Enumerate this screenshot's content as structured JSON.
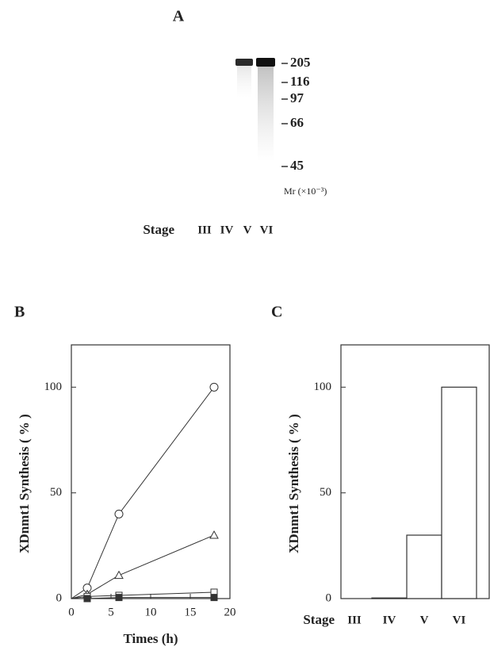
{
  "gel": {
    "label": "A",
    "markers": [
      205,
      116,
      97,
      66,
      45
    ],
    "unit": "Mr (×10⁻³)",
    "stage_label": "Stage",
    "lanes": [
      "III",
      "IV",
      "V",
      "VI"
    ]
  },
  "chart_data": [
    {
      "type": "scatter",
      "panel": "B",
      "ylabel": "XDnmt1 Synthesis ( % )",
      "xlabel": "Times (h)",
      "xlim": [
        0,
        20
      ],
      "xticks": [
        0,
        5,
        10,
        15,
        20
      ],
      "ylim": [
        0,
        120
      ],
      "yticks": [
        0,
        50,
        100
      ],
      "series": [
        {
          "marker": "circle",
          "color": "#333333",
          "x": [
            0,
            2,
            6,
            18
          ],
          "values": [
            0,
            5,
            40,
            100
          ]
        },
        {
          "marker": "triangle",
          "color": "#333333",
          "x": [
            0,
            2,
            6,
            18
          ],
          "values": [
            0,
            2,
            11,
            30
          ]
        },
        {
          "marker": "square",
          "color": "#333333",
          "x": [
            0,
            2,
            6,
            18
          ],
          "values": [
            0,
            1,
            1.5,
            3
          ]
        },
        {
          "marker": "filled-square",
          "color": "#333333",
          "x": [
            0,
            2,
            6,
            18
          ],
          "values": [
            0,
            0,
            0.5,
            0.5
          ]
        }
      ]
    },
    {
      "type": "bar",
      "panel": "C",
      "ylabel": "XDnmt1 Synthesis ( % )",
      "xlabel": "Stage",
      "categories": [
        "III",
        "IV",
        "V",
        "VI"
      ],
      "values": [
        0,
        0.3,
        30,
        100
      ],
      "color": "#ffffff",
      "ylim": [
        0,
        120
      ],
      "yticks": [
        0,
        50,
        100
      ]
    }
  ]
}
